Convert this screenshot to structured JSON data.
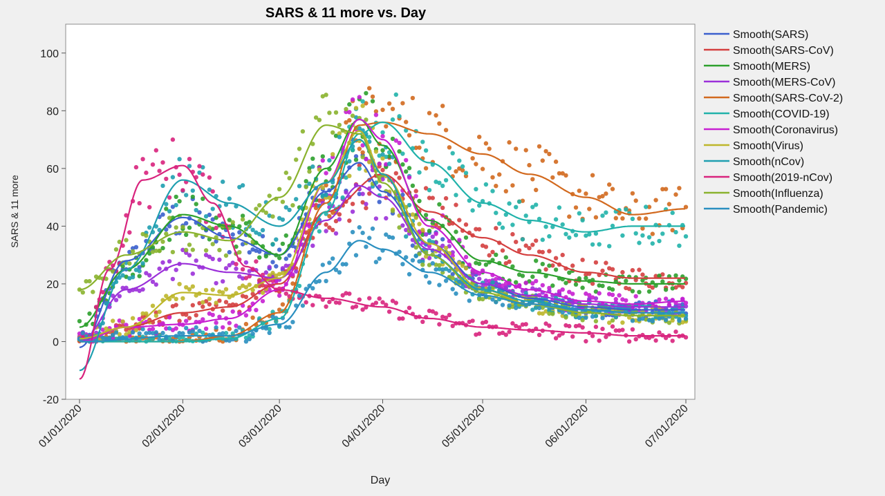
{
  "chart_data": {
    "type": "scatter",
    "title": "SARS & 11 more vs. Day",
    "xlabel": "Day",
    "ylabel": "SARS & 11 more",
    "x_axis_type": "date",
    "xlim": [
      "2020-01-01",
      "2020-07-01"
    ],
    "ylim": [
      -20,
      110
    ],
    "yticks": [
      -20,
      0,
      20,
      40,
      60,
      80,
      100
    ],
    "xticks": [
      {
        "date": "2020-01-01",
        "label": "01/01/2020"
      },
      {
        "date": "2020-02-01",
        "label": "02/01/2020"
      },
      {
        "date": "2020-03-01",
        "label": "03/01/2020"
      },
      {
        "date": "2020-04-01",
        "label": "04/01/2020"
      },
      {
        "date": "2020-05-01",
        "label": "05/01/2020"
      },
      {
        "date": "2020-06-01",
        "label": "06/01/2020"
      },
      {
        "date": "2020-07-01",
        "label": "07/01/2020"
      }
    ],
    "grid": false,
    "legend_position": "right",
    "series": [
      {
        "name": "Smooth(SARS)",
        "color": "#3a5fcd",
        "x": [
          "2020-01-01",
          "2020-01-15",
          "2020-02-01",
          "2020-02-15",
          "2020-03-01",
          "2020-03-15",
          "2020-03-25",
          "2020-04-01",
          "2020-04-15",
          "2020-05-01",
          "2020-05-15",
          "2020-06-01",
          "2020-06-15",
          "2020-07-01"
        ],
        "y": [
          -2,
          28,
          43,
          36,
          30,
          52,
          62,
          52,
          34,
          20,
          15,
          12,
          11,
          11
        ]
      },
      {
        "name": "Smooth(SARS-CoV)",
        "color": "#d43f3f",
        "x": [
          "2020-01-01",
          "2020-01-15",
          "2020-02-01",
          "2020-02-15",
          "2020-03-01",
          "2020-03-15",
          "2020-04-01",
          "2020-04-15",
          "2020-05-01",
          "2020-05-15",
          "2020-06-01",
          "2020-06-15",
          "2020-07-01"
        ],
        "y": [
          0,
          5,
          10,
          12,
          20,
          45,
          58,
          45,
          36,
          30,
          24,
          22,
          22
        ]
      },
      {
        "name": "Smooth(MERS)",
        "color": "#2ca02c",
        "x": [
          "2020-01-01",
          "2020-01-15",
          "2020-02-01",
          "2020-02-15",
          "2020-03-01",
          "2020-03-15",
          "2020-03-25",
          "2020-04-01",
          "2020-04-15",
          "2020-05-01",
          "2020-05-15",
          "2020-06-01",
          "2020-06-15",
          "2020-07-01"
        ],
        "y": [
          5,
          25,
          44,
          40,
          30,
          60,
          77,
          68,
          42,
          28,
          24,
          21,
          20,
          20
        ]
      },
      {
        "name": "Smooth(MERS-CoV)",
        "color": "#9b30d9",
        "x": [
          "2020-01-01",
          "2020-01-15",
          "2020-02-01",
          "2020-02-15",
          "2020-03-01",
          "2020-03-15",
          "2020-03-25",
          "2020-04-01",
          "2020-04-15",
          "2020-05-01",
          "2020-05-15",
          "2020-06-01",
          "2020-06-15",
          "2020-07-01"
        ],
        "y": [
          0,
          18,
          27,
          24,
          22,
          42,
          54,
          50,
          32,
          20,
          16,
          13,
          12,
          12
        ]
      },
      {
        "name": "Smooth(SARS-CoV-2)",
        "color": "#d2691e",
        "x": [
          "2020-01-01",
          "2020-02-01",
          "2020-02-15",
          "2020-03-01",
          "2020-03-15",
          "2020-03-25",
          "2020-04-01",
          "2020-04-15",
          "2020-05-01",
          "2020-05-15",
          "2020-06-01",
          "2020-06-15",
          "2020-07-01"
        ],
        "y": [
          0,
          0,
          2,
          10,
          48,
          75,
          76,
          72,
          65,
          58,
          50,
          44,
          46
        ]
      },
      {
        "name": "Smooth(COVID-19)",
        "color": "#20b2aa",
        "x": [
          "2020-01-01",
          "2020-02-01",
          "2020-02-15",
          "2020-03-01",
          "2020-03-15",
          "2020-03-25",
          "2020-04-01",
          "2020-04-15",
          "2020-05-01",
          "2020-05-15",
          "2020-06-01",
          "2020-06-15",
          "2020-07-01"
        ],
        "y": [
          0,
          0,
          1,
          8,
          45,
          72,
          76,
          62,
          48,
          42,
          38,
          40,
          40
        ]
      },
      {
        "name": "Smooth(Coronavirus)",
        "color": "#c71fd1",
        "x": [
          "2020-01-01",
          "2020-01-15",
          "2020-02-01",
          "2020-02-15",
          "2020-03-01",
          "2020-03-15",
          "2020-03-25",
          "2020-04-01",
          "2020-04-15",
          "2020-05-01",
          "2020-05-15",
          "2020-06-01",
          "2020-06-15",
          "2020-07-01"
        ],
        "y": [
          0,
          5,
          6,
          8,
          18,
          55,
          77,
          70,
          40,
          24,
          18,
          14,
          13,
          14
        ]
      },
      {
        "name": "Smooth(Virus)",
        "color": "#bdb62a",
        "x": [
          "2020-01-01",
          "2020-01-15",
          "2020-02-01",
          "2020-02-15",
          "2020-03-01",
          "2020-03-15",
          "2020-03-25",
          "2020-04-01",
          "2020-04-15",
          "2020-05-01",
          "2020-05-15",
          "2020-06-01",
          "2020-06-15",
          "2020-07-01"
        ],
        "y": [
          1,
          5,
          17,
          16,
          22,
          55,
          73,
          58,
          34,
          18,
          13,
          10,
          9,
          9
        ]
      },
      {
        "name": "Smooth(nCov)",
        "color": "#1f9fb0",
        "x": [
          "2020-01-01",
          "2020-01-15",
          "2020-02-01",
          "2020-02-15",
          "2020-03-01",
          "2020-03-15",
          "2020-03-25",
          "2020-04-01",
          "2020-04-15",
          "2020-05-01",
          "2020-05-15",
          "2020-06-01",
          "2020-06-15",
          "2020-07-01"
        ],
        "y": [
          -10,
          25,
          56,
          48,
          40,
          55,
          70,
          58,
          30,
          18,
          14,
          11,
          10,
          10
        ]
      },
      {
        "name": "Smooth(2019-nCov)",
        "color": "#d8237d",
        "x": [
          "2020-01-01",
          "2020-01-10",
          "2020-01-20",
          "2020-02-01",
          "2020-02-10",
          "2020-02-20",
          "2020-03-01",
          "2020-03-15",
          "2020-04-01",
          "2020-04-15",
          "2020-05-01",
          "2020-05-15",
          "2020-06-01",
          "2020-06-15",
          "2020-07-01"
        ],
        "y": [
          -13,
          25,
          56,
          61,
          48,
          26,
          18,
          15,
          12,
          8,
          5,
          4,
          3,
          2,
          2
        ]
      },
      {
        "name": "Smooth(Influenza)",
        "color": "#8ab22d",
        "x": [
          "2020-01-01",
          "2020-01-15",
          "2020-02-01",
          "2020-02-15",
          "2020-03-01",
          "2020-03-15",
          "2020-03-25",
          "2020-04-01",
          "2020-04-15",
          "2020-05-01",
          "2020-05-15",
          "2020-06-01",
          "2020-06-15",
          "2020-07-01"
        ],
        "y": [
          18,
          30,
          38,
          35,
          50,
          75,
          72,
          55,
          30,
          17,
          13,
          10,
          9,
          9
        ]
      },
      {
        "name": "Smooth(Pandemic)",
        "color": "#2a8fc0",
        "x": [
          "2020-01-01",
          "2020-02-01",
          "2020-02-15",
          "2020-03-01",
          "2020-03-15",
          "2020-03-25",
          "2020-04-01",
          "2020-04-15",
          "2020-05-01",
          "2020-05-15",
          "2020-06-01",
          "2020-06-15",
          "2020-07-01"
        ],
        "y": [
          0,
          2,
          2,
          6,
          24,
          35,
          32,
          24,
          16,
          13,
          11,
          10,
          10
        ]
      }
    ]
  }
}
